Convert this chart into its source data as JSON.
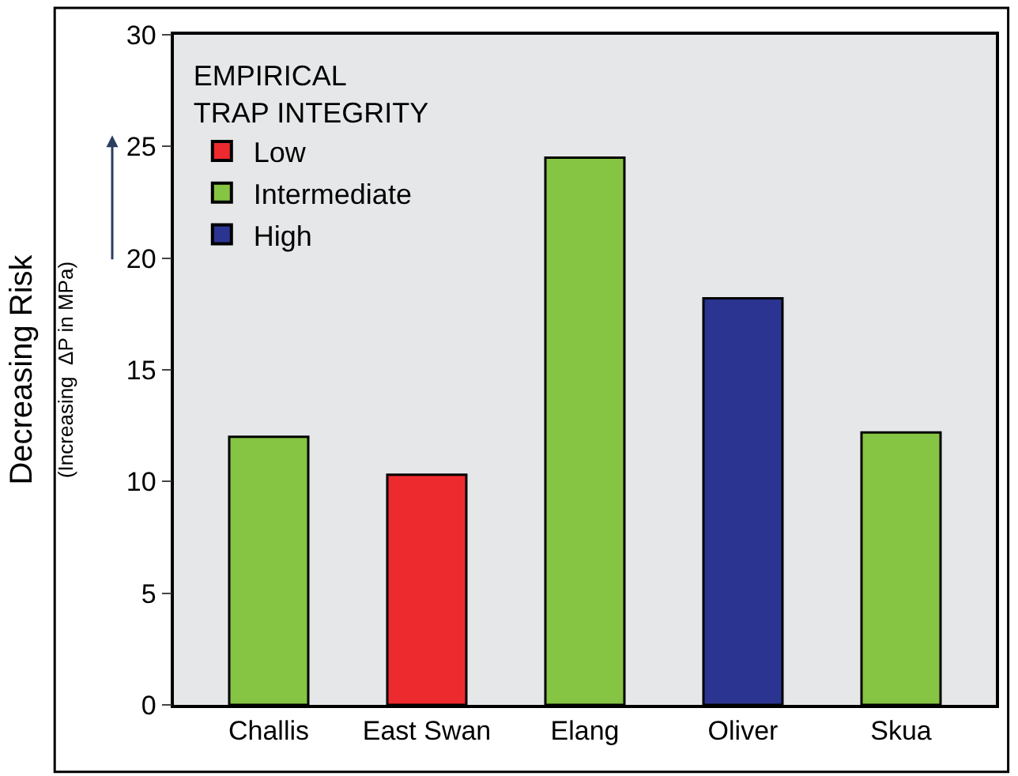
{
  "chart_data": {
    "type": "bar",
    "ylabel": "Decreasing Risk\n(Increasing  ΔP in MPa)",
    "legend_title": "EMPIRICAL\nTRAP INTEGRITY",
    "categories": [
      "Challis",
      "East Swan",
      "Elang",
      "Oliver",
      "Skua"
    ],
    "series": [
      {
        "name": "Low",
        "color": "#ed2a2e",
        "values": [
          null,
          10.3,
          null,
          null,
          null
        ]
      },
      {
        "name": "Intermediate",
        "color": "#86c443",
        "values": [
          12.0,
          null,
          24.5,
          null,
          12.2
        ]
      },
      {
        "name": "High",
        "color": "#2b3591",
        "values": [
          null,
          null,
          null,
          18.2,
          null
        ]
      }
    ],
    "ylim": [
      0,
      30
    ],
    "yticks": [
      0,
      5,
      10,
      15,
      20,
      25,
      30
    ],
    "grid": false,
    "legend": "top left"
  }
}
